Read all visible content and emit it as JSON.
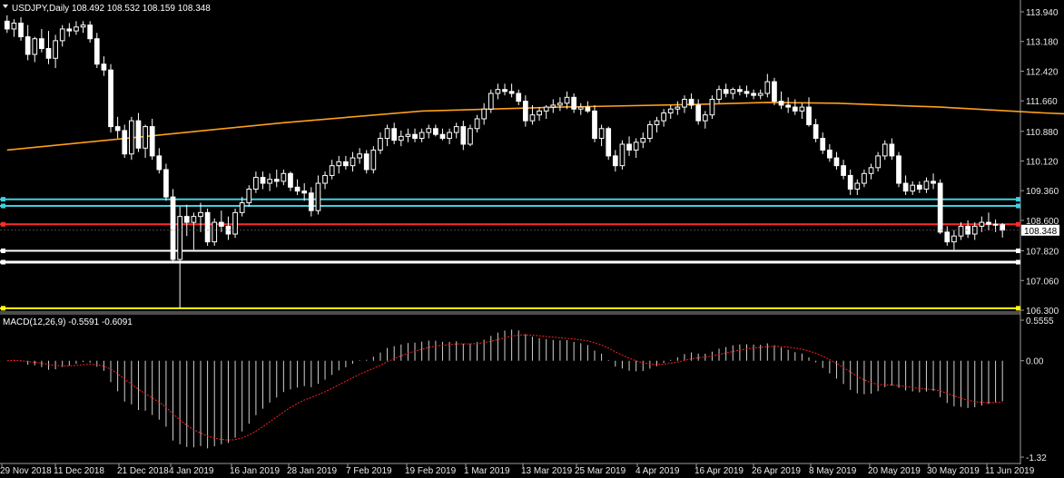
{
  "header": {
    "symbol_label": "USDJPY,Daily",
    "ohlc": "108.492 108.532 108.159 108.348"
  },
  "macd": {
    "label": "MACD(12,26,9) -0.5591 -0.6091"
  },
  "current_price": "108.348",
  "colors": {
    "background": "#000000",
    "candle": "#ffffff",
    "ma_line": "#ff9f1a",
    "cyan_level": "#3fd0e0",
    "red_level": "#ff2a2a",
    "white_level": "#ffffff",
    "yellow_level": "#ffff00",
    "signal_line": "#ff2020",
    "axis_text": "#e8e8e8"
  },
  "chart_data": [
    {
      "type": "candlestick",
      "title": "USDJPY,Daily",
      "y_ticks": [
        "113.940",
        "113.180",
        "112.420",
        "111.660",
        "110.880",
        "110.120",
        "109.360",
        "108.600",
        "107.820",
        "107.060",
        "106.300"
      ],
      "x_ticks": [
        "29 Nov 2018",
        "11 Dec 2018",
        "21 Dec 2018",
        "4 Jan 2019",
        "16 Jan 2019",
        "28 Jan 2019",
        "7 Feb 2019",
        "19 Feb 2019",
        "1 Mar 2019",
        "13 Mar 2019",
        "25 Mar 2019",
        "4 Apr 2019",
        "16 Apr 2019",
        "26 Apr 2019",
        "8 May 2019",
        "20 May 2019",
        "30 May 2019",
        "11 Jun 2019"
      ],
      "ylim": [
        106.3,
        113.94
      ],
      "horizontal_levels": [
        {
          "price": 109.14,
          "color": "cyan"
        },
        {
          "price": 108.97,
          "color": "cyan"
        },
        {
          "price": 108.5,
          "color": "red"
        },
        {
          "price": 107.82,
          "color": "white"
        },
        {
          "price": 107.53,
          "color": "white"
        },
        {
          "price": 106.35,
          "color": "yellow"
        }
      ],
      "moving_average": [
        [
          0,
          110.4
        ],
        [
          20,
          110.75
        ],
        [
          40,
          111.1
        ],
        [
          60,
          111.4
        ],
        [
          80,
          111.5
        ],
        [
          100,
          111.57
        ],
        [
          110,
          111.62
        ],
        [
          120,
          111.6
        ],
        [
          135,
          111.5
        ],
        [
          150,
          111.35
        ],
        [
          157,
          111.3
        ]
      ],
      "candles": [
        [
          113.7,
          113.85,
          113.4,
          113.5
        ],
        [
          113.5,
          113.75,
          113.3,
          113.65
        ],
        [
          113.65,
          113.8,
          113.2,
          113.3
        ],
        [
          113.3,
          113.6,
          112.7,
          112.85
        ],
        [
          112.85,
          113.3,
          112.65,
          113.25
        ],
        [
          113.25,
          113.5,
          112.9,
          113.0
        ],
        [
          113.0,
          113.45,
          112.6,
          112.75
        ],
        [
          112.75,
          113.35,
          112.5,
          113.2
        ],
        [
          113.2,
          113.6,
          113.05,
          113.5
        ],
        [
          113.5,
          113.65,
          113.3,
          113.45
        ],
        [
          113.45,
          113.7,
          113.35,
          113.55
        ],
        [
          113.55,
          113.7,
          113.4,
          113.6
        ],
        [
          113.6,
          113.7,
          113.15,
          113.25
        ],
        [
          113.25,
          113.4,
          112.5,
          112.6
        ],
        [
          112.6,
          112.8,
          112.3,
          112.45
        ],
        [
          112.45,
          112.6,
          110.85,
          111.0
        ],
        [
          111.0,
          111.25,
          110.7,
          110.9
        ],
        [
          110.9,
          111.05,
          110.2,
          110.3
        ],
        [
          110.3,
          111.25,
          110.15,
          111.15
        ],
        [
          111.15,
          111.35,
          110.35,
          110.45
        ],
        [
          110.45,
          111.05,
          110.2,
          111.0
        ],
        [
          111.0,
          111.2,
          110.15,
          110.25
        ],
        [
          110.25,
          110.45,
          109.8,
          109.9
        ],
        [
          109.9,
          110.05,
          109.1,
          109.2
        ],
        [
          109.2,
          109.4,
          107.5,
          107.6
        ],
        [
          107.6,
          108.95,
          106.35,
          108.7
        ],
        [
          108.7,
          109.0,
          108.2,
          108.55
        ],
        [
          108.55,
          108.8,
          107.85,
          108.7
        ],
        [
          108.7,
          109.05,
          108.3,
          108.8
        ],
        [
          108.8,
          108.9,
          107.95,
          108.05
        ],
        [
          108.05,
          108.65,
          107.95,
          108.55
        ],
        [
          108.55,
          108.85,
          108.3,
          108.45
        ],
        [
          108.45,
          108.7,
          108.1,
          108.25
        ],
        [
          108.25,
          108.9,
          108.15,
          108.8
        ],
        [
          108.8,
          109.2,
          108.7,
          109.05
        ],
        [
          109.05,
          109.5,
          108.95,
          109.4
        ],
        [
          109.4,
          109.85,
          109.3,
          109.7
        ],
        [
          109.7,
          109.85,
          109.4,
          109.55
        ],
        [
          109.55,
          109.8,
          109.35,
          109.65
        ],
        [
          109.65,
          109.9,
          109.45,
          109.6
        ],
        [
          109.6,
          109.9,
          109.5,
          109.8
        ],
        [
          109.8,
          109.85,
          109.35,
          109.45
        ],
        [
          109.45,
          109.65,
          109.25,
          109.35
        ],
        [
          109.35,
          109.55,
          109.1,
          109.3
        ],
        [
          109.3,
          109.45,
          108.7,
          108.85
        ],
        [
          108.85,
          109.75,
          108.75,
          109.55
        ],
        [
          109.55,
          109.85,
          109.4,
          109.75
        ],
        [
          109.75,
          110.15,
          109.65,
          110.0
        ],
        [
          110.0,
          110.25,
          109.8,
          110.1
        ],
        [
          110.1,
          110.25,
          109.9,
          110.0
        ],
        [
          110.0,
          110.35,
          109.85,
          110.2
        ],
        [
          110.2,
          110.45,
          110.05,
          110.3
        ],
        [
          110.3,
          110.4,
          109.8,
          109.9
        ],
        [
          109.9,
          110.5,
          109.8,
          110.4
        ],
        [
          110.4,
          110.85,
          110.3,
          110.7
        ],
        [
          110.7,
          111.05,
          110.5,
          110.95
        ],
        [
          110.95,
          111.1,
          110.55,
          110.65
        ],
        [
          110.65,
          110.9,
          110.5,
          110.75
        ],
        [
          110.75,
          110.95,
          110.6,
          110.8
        ],
        [
          110.8,
          110.95,
          110.6,
          110.7
        ],
        [
          110.7,
          110.95,
          110.6,
          110.85
        ],
        [
          110.85,
          111.05,
          110.7,
          110.95
        ],
        [
          110.95,
          111.05,
          110.75,
          110.8
        ],
        [
          110.8,
          110.95,
          110.65,
          110.7
        ],
        [
          110.7,
          110.95,
          110.55,
          110.85
        ],
        [
          110.85,
          111.1,
          110.7,
          111.0
        ],
        [
          111.0,
          111.15,
          110.4,
          110.55
        ],
        [
          110.55,
          111.05,
          110.5,
          110.95
        ],
        [
          110.95,
          111.3,
          110.85,
          111.2
        ],
        [
          111.2,
          111.6,
          111.05,
          111.45
        ],
        [
          111.45,
          111.95,
          111.35,
          111.85
        ],
        [
          111.85,
          112.1,
          111.7,
          111.95
        ],
        [
          111.95,
          112.1,
          111.8,
          111.9
        ],
        [
          111.9,
          112.1,
          111.75,
          111.85
        ],
        [
          111.85,
          111.95,
          111.55,
          111.65
        ],
        [
          111.65,
          111.8,
          111.0,
          111.15
        ],
        [
          111.15,
          111.55,
          111.05,
          111.3
        ],
        [
          111.3,
          111.5,
          111.15,
          111.4
        ],
        [
          111.4,
          111.55,
          111.2,
          111.5
        ],
        [
          111.5,
          111.7,
          111.35,
          111.55
        ],
        [
          111.55,
          111.75,
          111.4,
          111.6
        ],
        [
          111.6,
          111.9,
          111.45,
          111.75
        ],
        [
          111.75,
          111.85,
          111.35,
          111.45
        ],
        [
          111.45,
          111.6,
          111.3,
          111.5
        ],
        [
          111.5,
          111.65,
          111.35,
          111.4
        ],
        [
          111.4,
          111.55,
          110.6,
          110.7
        ],
        [
          110.7,
          111.05,
          110.5,
          110.95
        ],
        [
          110.95,
          111.0,
          110.15,
          110.25
        ],
        [
          110.25,
          110.4,
          109.85,
          110.0
        ],
        [
          110.0,
          110.65,
          109.9,
          110.55
        ],
        [
          110.55,
          110.75,
          110.25,
          110.4
        ],
        [
          110.4,
          110.7,
          110.2,
          110.6
        ],
        [
          110.6,
          110.85,
          110.45,
          110.7
        ],
        [
          110.7,
          111.15,
          110.6,
          111.05
        ],
        [
          111.05,
          111.25,
          110.85,
          111.15
        ],
        [
          111.15,
          111.45,
          111.0,
          111.35
        ],
        [
          111.35,
          111.55,
          111.2,
          111.45
        ],
        [
          111.45,
          111.65,
          111.3,
          111.5
        ],
        [
          111.5,
          111.8,
          111.35,
          111.7
        ],
        [
          111.7,
          111.85,
          111.45,
          111.55
        ],
        [
          111.55,
          111.7,
          111.05,
          111.15
        ],
        [
          111.15,
          111.4,
          110.95,
          111.3
        ],
        [
          111.3,
          111.8,
          111.2,
          111.7
        ],
        [
          111.7,
          112.05,
          111.6,
          111.95
        ],
        [
          111.95,
          112.1,
          111.75,
          111.85
        ],
        [
          111.85,
          112.0,
          111.7,
          111.95
        ],
        [
          111.95,
          112.05,
          111.8,
          111.9
        ],
        [
          111.9,
          112.05,
          111.75,
          111.85
        ],
        [
          111.85,
          111.95,
          111.7,
          111.8
        ],
        [
          111.8,
          111.95,
          111.7,
          111.85
        ],
        [
          111.85,
          112.35,
          111.75,
          112.15
        ],
        [
          112.15,
          112.25,
          111.55,
          111.65
        ],
        [
          111.65,
          111.9,
          111.45,
          111.55
        ],
        [
          111.55,
          111.75,
          111.35,
          111.5
        ],
        [
          111.5,
          111.7,
          111.3,
          111.4
        ],
        [
          111.4,
          111.6,
          111.2,
          111.5
        ],
        [
          111.5,
          111.75,
          111.0,
          111.05
        ],
        [
          111.05,
          111.2,
          110.6,
          110.7
        ],
        [
          110.7,
          110.85,
          110.3,
          110.4
        ],
        [
          110.4,
          110.55,
          110.1,
          110.2
        ],
        [
          110.2,
          110.35,
          109.9,
          110.0
        ],
        [
          110.0,
          110.15,
          109.65,
          109.75
        ],
        [
          109.75,
          109.9,
          109.25,
          109.4
        ],
        [
          109.4,
          109.65,
          109.25,
          109.55
        ],
        [
          109.55,
          109.9,
          109.45,
          109.8
        ],
        [
          109.8,
          110.05,
          109.65,
          109.95
        ],
        [
          109.95,
          110.35,
          109.85,
          110.25
        ],
        [
          110.25,
          110.65,
          110.15,
          110.55
        ],
        [
          110.55,
          110.7,
          110.15,
          110.25
        ],
        [
          110.25,
          110.35,
          109.45,
          109.55
        ],
        [
          109.55,
          109.75,
          109.25,
          109.35
        ],
        [
          109.35,
          109.6,
          109.25,
          109.5
        ],
        [
          109.5,
          109.6,
          109.3,
          109.4
        ],
        [
          109.4,
          109.7,
          109.3,
          109.6
        ],
        [
          109.6,
          109.8,
          109.4,
          109.55
        ],
        [
          109.55,
          109.65,
          108.25,
          108.3
        ],
        [
          108.3,
          108.45,
          107.95,
          108.05
        ],
        [
          108.05,
          108.35,
          107.85,
          108.2
        ],
        [
          108.2,
          108.55,
          108.1,
          108.45
        ],
        [
          108.45,
          108.6,
          108.15,
          108.25
        ],
        [
          108.25,
          108.55,
          108.1,
          108.45
        ],
        [
          108.45,
          108.7,
          108.3,
          108.55
        ],
        [
          108.55,
          108.8,
          108.35,
          108.5
        ],
        [
          108.5,
          108.62,
          108.3,
          108.49
        ],
        [
          108.49,
          108.53,
          108.16,
          108.35
        ]
      ]
    },
    {
      "type": "macd",
      "title": "MACD(12,26,9) -0.5591 -0.6091",
      "y_ticks": [
        "0.5555",
        "0.00",
        "-1.32"
      ],
      "ylim": [
        -1.32,
        0.5555
      ]
    }
  ]
}
